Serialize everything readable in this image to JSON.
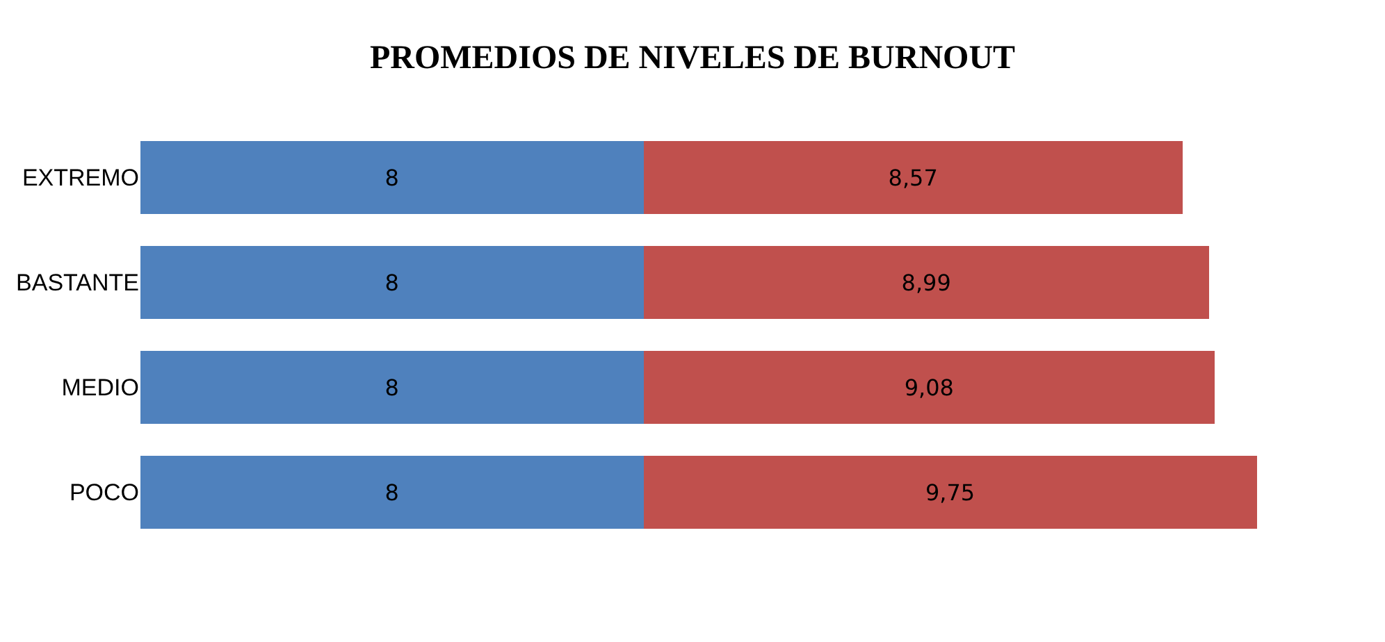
{
  "chart_data": {
    "type": "bar",
    "title": "PROMEDIOS DE NIVELES DE BURNOUT",
    "orientation": "horizontal",
    "stacked": true,
    "tick_labels": "y",
    "legend": false,
    "categories": [
      "EXTREMO",
      "BASTANTE",
      "MEDIO",
      "POCO"
    ],
    "series": [
      {
        "color": "#4f81bd",
        "values": [
          8,
          8,
          8,
          8
        ],
        "value_labels": [
          "8",
          "8",
          "8",
          "8"
        ]
      },
      {
        "color": "#c0504d",
        "values": [
          8.57,
          8.99,
          9.08,
          9.75
        ],
        "value_labels": [
          "8,57",
          "8,99",
          "9,08",
          "9,75"
        ]
      }
    ]
  }
}
